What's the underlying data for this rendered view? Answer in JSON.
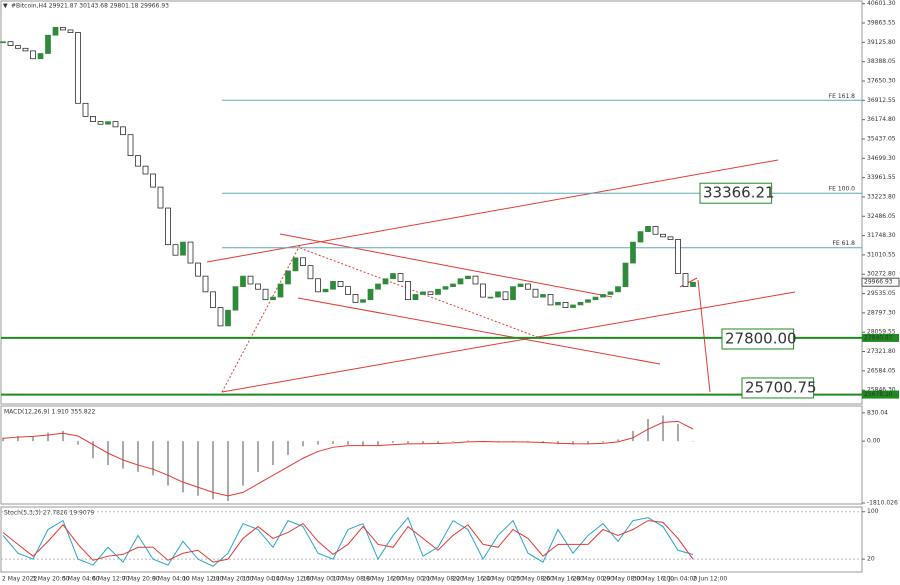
{
  "chart_data": [
    {
      "type": "candlestick",
      "title": "#Bitcoin,H4  29921.87 30143.68 29801.18 29966.93",
      "up_color": "#2e8b3a",
      "down_color": "#111111",
      "closes": [
        39150,
        39000,
        38900,
        38800,
        38500,
        38700,
        39400,
        39700,
        39600,
        39500,
        36800,
        36300,
        36100,
        36000,
        36100,
        35900,
        35600,
        34800,
        34400,
        34100,
        33600,
        32800,
        31400,
        31000,
        31500,
        30700,
        30200,
        29600,
        29000,
        28300,
        28900,
        29800,
        30200,
        29900,
        29700,
        29300,
        29400,
        29900,
        30400,
        30900,
        30600,
        30100,
        29600,
        29700,
        30000,
        29800,
        29500,
        29200,
        29300,
        29700,
        29900,
        30100,
        30300,
        30000,
        29300,
        29500,
        29600,
        29500,
        29700,
        29800,
        29900,
        30100,
        30200,
        29900,
        29400,
        29400,
        29600,
        29300,
        29800,
        29900,
        29700,
        29400,
        29500,
        29100,
        29200,
        29000,
        29100,
        29200,
        29300,
        29400,
        29500,
        29600,
        29800,
        30700,
        31500,
        31900,
        32100,
        31800,
        31700,
        31600,
        30300,
        29800,
        29966.93
      ],
      "ylim": [
        25356,
        40667
      ],
      "yticks": [
        {
          "value": 40601.3,
          "label": "40601.30"
        },
        {
          "value": 39863.55,
          "label": "39863.55"
        },
        {
          "value": 39125.8,
          "label": "39125.80"
        },
        {
          "value": 38388.05,
          "label": "38388.05"
        },
        {
          "value": 37650.3,
          "label": "37650.30"
        },
        {
          "value": 36912.55,
          "label": "36912.55"
        },
        {
          "value": 36174.8,
          "label": "36174.80"
        },
        {
          "value": 35437.05,
          "label": "35437.05"
        },
        {
          "value": 34699.3,
          "label": "34699.30"
        },
        {
          "value": 33961.55,
          "label": "33961.55"
        },
        {
          "value": 33223.8,
          "label": "33223.80"
        },
        {
          "value": 32486.05,
          "label": "32486.05"
        },
        {
          "value": 31748.3,
          "label": "31748.30"
        },
        {
          "value": 31010.55,
          "label": "31010.55"
        },
        {
          "value": 30272.8,
          "label": "30272.80"
        },
        {
          "value": 29535.05,
          "label": "29535.05"
        },
        {
          "value": 28797.3,
          "label": "28797.30"
        },
        {
          "value": 28059.55,
          "label": "28059.55"
        },
        {
          "value": 27321.8,
          "label": "27321.80"
        },
        {
          "value": 26584.05,
          "label": "26584.05"
        },
        {
          "value": 25846.3,
          "label": "25846.30"
        }
      ],
      "fib_levels": [
        {
          "value": 36915,
          "label": "FE 161.8"
        },
        {
          "value": 33366.21,
          "label": "FE 100.0"
        },
        {
          "value": 31285,
          "label": "FE 61.8"
        }
      ],
      "support_levels": [
        {
          "value": 27840.87,
          "label": "27840.87"
        },
        {
          "value": 25678.1,
          "label": "25678.10"
        }
      ],
      "current_price": {
        "value": 29966.93,
        "label": "29966.93"
      },
      "targets": [
        {
          "value": 33366.21,
          "label": "33366.21"
        },
        {
          "value": 27800.0,
          "label": "27800.00"
        },
        {
          "value": 25700.75,
          "label": "25700.75"
        }
      ],
      "time_labels": [
        "2 May 2022",
        "3 May 20:00",
        "5 May 04:00",
        "6 May 12:00",
        "7 May 20:00",
        "9 May 04:00",
        "10 May 12:00",
        "11 May 20:00",
        "13 May 04:00",
        "14 May 12:00",
        "16 May 00:00",
        "17 May 08:00",
        "18 May 16:00",
        "20 May 00:00",
        "21 May 08:00",
        "22 May 16:00",
        "24 May 00:00",
        "25 May 08:00",
        "26 May 16:00",
        "28 May 00:00",
        "29 May 08:00",
        "30 May 16:00",
        "1 Jun 04:00",
        "2 Jun 12:00"
      ]
    },
    {
      "type": "macd",
      "title": "MACD(12,26,9) 1.910 355.822",
      "histogram": [
        100,
        150,
        150,
        250,
        300,
        -100,
        -500,
        -700,
        -800,
        -900,
        -1000,
        -1300,
        -1500,
        -1600,
        -1700,
        -1750,
        -1300,
        -900,
        -700,
        -400,
        -150,
        -100,
        -80,
        -100,
        -150,
        -120,
        -50,
        -60,
        -80,
        -60,
        -20,
        20,
        0,
        -30,
        -10,
        -30,
        -60,
        -90,
        -100,
        -80,
        -40,
        50,
        300,
        650,
        750,
        500,
        1.91
      ],
      "signal": [
        80,
        120,
        140,
        180,
        230,
        150,
        -100,
        -350,
        -550,
        -700,
        -820,
        -1000,
        -1200,
        -1350,
        -1500,
        -1600,
        -1500,
        -1250,
        -1000,
        -750,
        -500,
        -300,
        -180,
        -130,
        -130,
        -130,
        -100,
        -80,
        -75,
        -70,
        -50,
        -20,
        -10,
        -20,
        -20,
        -25,
        -40,
        -60,
        -75,
        -80,
        -65,
        -20,
        100,
        350,
        550,
        580,
        355.822
      ],
      "histogram_color": "#aaaaaa",
      "signal_color": "#e53935",
      "ylim": [
        -1810.026,
        1000
      ],
      "yticks": [
        {
          "value": 830.04,
          "label": "830.04"
        },
        {
          "value": 0,
          "label": "0.00"
        },
        {
          "value": -1810.026,
          "label": "-1810.026"
        }
      ]
    },
    {
      "type": "stochastic",
      "title": "Stoch(5,3,3) 27.7826 19.9079",
      "main": [
        60,
        30,
        20,
        70,
        85,
        20,
        10,
        40,
        15,
        60,
        20,
        10,
        50,
        20,
        8,
        30,
        80,
        70,
        40,
        85,
        75,
        30,
        20,
        70,
        80,
        20,
        60,
        90,
        25,
        40,
        85,
        70,
        20,
        60,
        85,
        30,
        15,
        70,
        30,
        60,
        80,
        50,
        85,
        90,
        75,
        35,
        27.7826
      ],
      "signal": [
        65,
        45,
        25,
        50,
        78,
        45,
        18,
        25,
        28,
        40,
        40,
        18,
        30,
        35,
        15,
        20,
        55,
        75,
        55,
        65,
        80,
        50,
        28,
        45,
        75,
        45,
        40,
        75,
        55,
        35,
        60,
        78,
        45,
        40,
        70,
        55,
        25,
        45,
        45,
        45,
        70,
        60,
        70,
        85,
        82,
        55,
        19.9079
      ],
      "main_color": "#26a6c9",
      "signal_color": "#e53935",
      "ylim": [
        0,
        108
      ],
      "yticks": [
        100,
        20
      ]
    }
  ]
}
